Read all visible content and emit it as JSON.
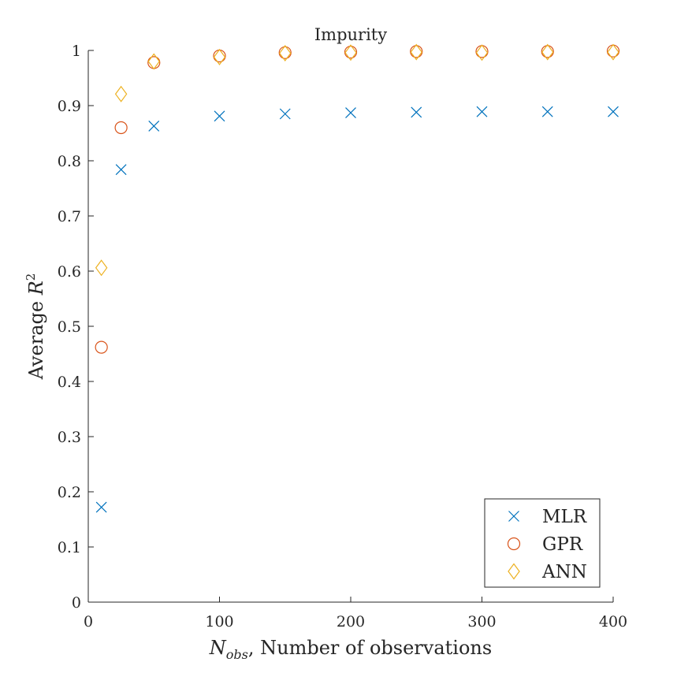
{
  "chart_data": {
    "type": "scatter",
    "title": "Impurity",
    "xlabel": {
      "main": "N",
      "sub": "obs",
      "rest": ", Number of observations"
    },
    "ylabel": {
      "main": "Average ",
      "var": "R",
      "sup": "2"
    },
    "xlim": [
      0,
      400
    ],
    "ylim": [
      0,
      1
    ],
    "xticks": [
      0,
      100,
      200,
      300,
      400
    ],
    "xtick_labels": [
      "0",
      "100",
      "200",
      "300",
      "400"
    ],
    "yticks": [
      0,
      0.1,
      0.2,
      0.3,
      0.4,
      0.5,
      0.6,
      0.7,
      0.8,
      0.9,
      1
    ],
    "ytick_labels": [
      "0",
      "0.1",
      "0.2",
      "0.3",
      "0.4",
      "0.5",
      "0.6",
      "0.7",
      "0.8",
      "0.9",
      "1"
    ],
    "grid": false,
    "legend_position": "bottom-right",
    "series": [
      {
        "name": "MLR",
        "marker": "x",
        "color": "#0072BD",
        "x": [
          10,
          25,
          50,
          100,
          150,
          200,
          250,
          300,
          350,
          400
        ],
        "y": [
          0.172,
          0.784,
          0.863,
          0.881,
          0.885,
          0.887,
          0.888,
          0.889,
          0.889,
          0.889
        ]
      },
      {
        "name": "GPR",
        "marker": "circle",
        "color": "#D95319",
        "x": [
          10,
          25,
          50,
          100,
          150,
          200,
          250,
          300,
          350,
          400
        ],
        "y": [
          0.462,
          0.86,
          0.978,
          0.99,
          0.996,
          0.997,
          0.998,
          0.998,
          0.998,
          0.999
        ]
      },
      {
        "name": "ANN",
        "marker": "diamond",
        "color": "#EDB120",
        "x": [
          10,
          25,
          50,
          100,
          150,
          200,
          250,
          300,
          350,
          400
        ],
        "y": [
          0.606,
          0.921,
          0.98,
          0.988,
          0.995,
          0.996,
          0.997,
          0.996,
          0.997,
          0.997
        ]
      }
    ]
  }
}
